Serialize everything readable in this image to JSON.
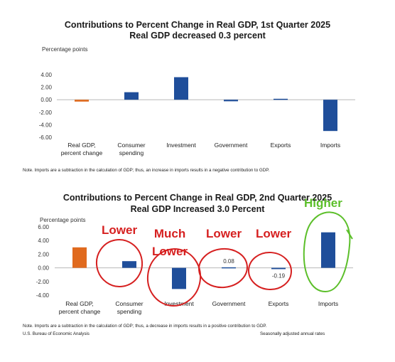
{
  "chart_data": [
    {
      "type": "bar",
      "title": "Contributions to Percent Change in Real GDP, 1st Quarter 2025",
      "subtitle": "Real GDP decreased 0.3 percent",
      "ylabel": "Percentage points",
      "ylim": [
        -6,
        4
      ],
      "yticks": [
        "4.00",
        "2.00",
        "0.00",
        "-2.00",
        "-4.00",
        "-6.00"
      ],
      "categories": [
        "Real GDP, percent change",
        "Consumer spending",
        "Investment",
        "Government",
        "Exports",
        "Imports"
      ],
      "category_lines": [
        [
          "Real GDP,",
          "percent change"
        ],
        [
          "Consumer",
          "spending"
        ],
        [
          "Investment"
        ],
        [
          "Government"
        ],
        [
          "Exports"
        ],
        [
          "Imports"
        ]
      ],
      "values": [
        -0.3,
        1.2,
        3.6,
        -0.25,
        0.15,
        -5.0
      ],
      "colors": [
        "#e06a1e",
        "#1f4e9a",
        "#1f4e9a",
        "#1f4e9a",
        "#1f4e9a",
        "#1f4e9a"
      ],
      "grid": false,
      "note": "Note. Imports are a subtraction in the calculation of GDP; thus, an increase in imports results in a negative contribution to GDP."
    },
    {
      "type": "bar",
      "title": "Contributions to Percent Change in Real GDP, 2nd Quarter 2025",
      "subtitle": "Real GDP Increased 3.0 Percent",
      "ylabel": "Percentage points",
      "ylim": [
        -4,
        6
      ],
      "yticks": [
        "6.00",
        "4.00",
        "2.00",
        "0.00",
        "-2.00",
        "-4.00"
      ],
      "categories": [
        "Real GDP, percent change",
        "Consumer spending",
        "Investment",
        "Government",
        "Exports",
        "Imports"
      ],
      "category_lines": [
        [
          "Real GDP,",
          "percent change"
        ],
        [
          "Consumer",
          "spending"
        ],
        [
          "Investment"
        ],
        [
          "Government"
        ],
        [
          "Exports"
        ],
        [
          "Imports"
        ]
      ],
      "values": [
        3.0,
        0.98,
        -3.1,
        0.08,
        -0.19,
        5.2
      ],
      "data_labels": [
        "",
        "",
        "",
        "0.08",
        "-0.19",
        ""
      ],
      "colors": [
        "#e06a1e",
        "#1f4e9a",
        "#1f4e9a",
        "#1f4e9a",
        "#1f4e9a",
        "#1f4e9a"
      ],
      "grid": false,
      "note": "Note. Imports are a subtraction in the calculation of GDP; thus, a decrease in imports results in a positive contribution to GDP.",
      "source": "U.S. Bureau of Economic Analysis",
      "rates": "Seasonally adjusted annual rates"
    }
  ],
  "annotations": {
    "lower1": "Lower",
    "much_lower": "Much\nLower",
    "lower2": "Lower",
    "lower3": "Lower",
    "higher": "Higher",
    "red": "#d62020",
    "green": "#5cbf2a"
  }
}
